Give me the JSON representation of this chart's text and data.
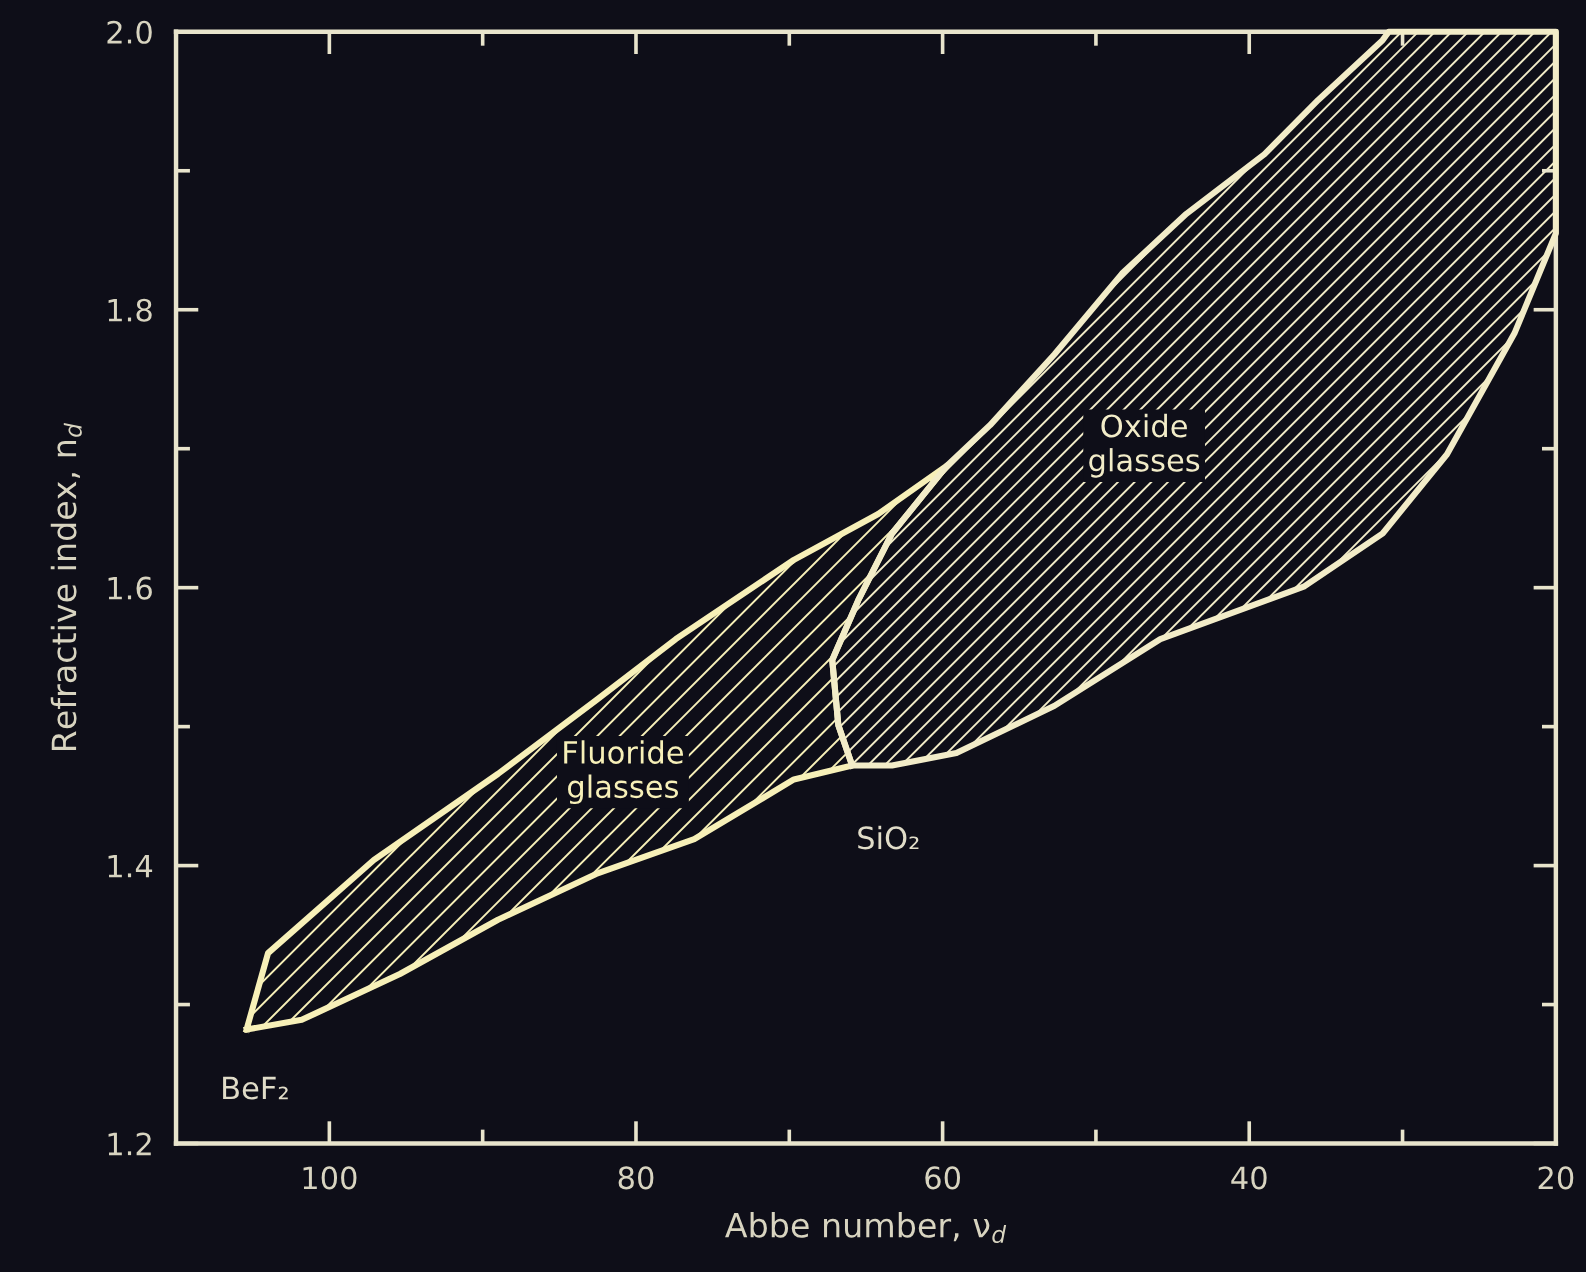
{
  "chart_data": {
    "type": "area",
    "xlabel": "Abbe number, ν$_{d}$",
    "ylabel": "Refractive index, n$_{d}$",
    "xlim": [
      110,
      20
    ],
    "ylim": [
      1.2,
      2.0
    ],
    "xticks": [
      100,
      {
        "value": 90,
        "label": null
      },
      80,
      {
        "value": 70,
        "label": null
      },
      60,
      {
        "value": 50,
        "label": null
      },
      40,
      {
        "value": 30,
        "label": null
      },
      20
    ],
    "yticks": [
      1.2,
      {
        "value": 1.3,
        "label": null
      },
      1.4,
      {
        "value": 1.5,
        "label": null
      },
      1.6,
      {
        "value": 1.7,
        "label": null
      },
      1.8,
      {
        "value": 1.9,
        "label": null
      },
      {
        "value": 2.0,
        "label": "2.0"
      }
    ],
    "grid": false,
    "legend": false,
    "series": [
      {
        "name": "Fluoride\nglasses",
        "color": "#f7f0b8",
        "x": [
          105.4,
          104.0,
          97.1,
          89.0,
          82.6,
          77.4,
          69.7,
          64.2,
          59.7,
          63.3,
          65.5,
          67.2,
          66.8,
          65.9,
          69.7,
          76.2,
          82.6,
          89.0,
          95.4,
          101.8,
          105.4
        ],
        "values": [
          1.282,
          1.337,
          1.404,
          1.466,
          1.519,
          1.563,
          1.62,
          1.653,
          1.688,
          1.639,
          1.591,
          1.548,
          1.501,
          1.472,
          1.462,
          1.419,
          1.394,
          1.361,
          1.322,
          1.289,
          1.282
        ]
      },
      {
        "name": "Oxide\nglasses",
        "color": "#f2ecc8",
        "x": [
          65.9,
          66.8,
          67.2,
          65.5,
          63.3,
          59.7,
          56.9,
          52.7,
          48.3,
          44.1,
          39.0,
          35.5,
          31.3,
          30.9,
          20,
          20,
          22.7,
          27.1,
          31.3,
          36.4,
          45.8,
          52.7,
          59.1,
          63.3,
          65.9
        ],
        "values": [
          1.472,
          1.501,
          1.548,
          1.591,
          1.639,
          1.688,
          1.717,
          1.768,
          1.826,
          1.869,
          1.912,
          1.951,
          1.994,
          2.0,
          2.0,
          1.855,
          1.783,
          1.696,
          1.639,
          1.601,
          1.563,
          1.515,
          1.481,
          1.472,
          1.472
        ]
      }
    ],
    "annotations": [
      {
        "text": "BeF₂",
        "x": 105.4,
        "y": 1.282
      },
      {
        "text": "SiO₂",
        "x": 65.9,
        "y": 1.472
      }
    ]
  }
}
